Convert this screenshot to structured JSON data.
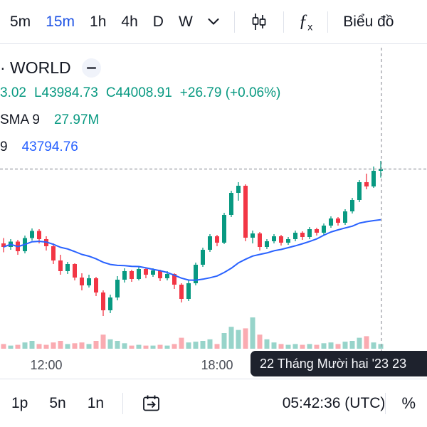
{
  "colors": {
    "up": "#089981",
    "down": "#F23645",
    "up_soft": "rgba(8,153,129,0.42)",
    "down_soft": "rgba(242,54,69,0.42)",
    "sma": "#2962FF",
    "price_line": "#787B86",
    "crosshair": "#9598A1",
    "accent": "#1E53E5",
    "text": "#131722",
    "teal": "#089981",
    "value_blue": "#2962FF",
    "tooltip_bg": "#1E222D"
  },
  "top_toolbar": {
    "timeframes": [
      {
        "label": "5m",
        "active": false
      },
      {
        "label": "15m",
        "active": true
      },
      {
        "label": "1h",
        "active": false
      },
      {
        "label": "4h",
        "active": false
      },
      {
        "label": "D",
        "active": false
      },
      {
        "label": "W",
        "active": false
      }
    ],
    "fx_f": "ƒ",
    "fx_sub": "x",
    "chart_button": "Biểu đồ"
  },
  "legend": {
    "symbol": "· WORLD",
    "ohlc": {
      "fragment": "3.02",
      "low": "L43984.73",
      "close": "C44008.91",
      "change": "+26.79 (+0.06%)"
    },
    "volume": {
      "label": "SMA 9",
      "value": "27.97M"
    },
    "sma": {
      "label": "9",
      "value": "43794.76"
    }
  },
  "x_axis": {
    "labels": [
      {
        "text": "12:00"
      },
      {
        "text": "18:00"
      }
    ]
  },
  "tooltip": {
    "text": "22 Tháng Mười hai '23  23"
  },
  "bottom_toolbar": {
    "ranges": [
      "1p",
      "5n",
      "1n"
    ],
    "clock": "05:42:36 (UTC)",
    "percent": "%"
  },
  "chart_data": {
    "type": "candlestick",
    "interval": "15m",
    "date": "22 Tháng Mười hai '23",
    "price_line": 44008.91,
    "last_close": 44008.91,
    "last_low": 43984.73,
    "change": 26.79,
    "change_pct": 0.06,
    "volume_current": "27.97M",
    "sma_value": 43794.76,
    "candles": [
      [
        43800,
        43815,
        43775,
        43790,
        3
      ],
      [
        43790,
        43812,
        43782,
        43805,
        2
      ],
      [
        43805,
        43810,
        43768,
        43778,
        2.5
      ],
      [
        43778,
        43822,
        43772,
        43815,
        4
      ],
      [
        43815,
        43842,
        43808,
        43835,
        5
      ],
      [
        43835,
        43840,
        43800,
        43812,
        3
      ],
      [
        43812,
        43820,
        43780,
        43792,
        2.5
      ],
      [
        43792,
        43800,
        43742,
        43752,
        4
      ],
      [
        43752,
        43768,
        43712,
        43722,
        5
      ],
      [
        43722,
        43748,
        43714,
        43742,
        3
      ],
      [
        43742,
        43744,
        43696,
        43704,
        3.5
      ],
      [
        43704,
        43716,
        43668,
        43682,
        4
      ],
      [
        43682,
        43712,
        43676,
        43702,
        3
      ],
      [
        43702,
        43706,
        43652,
        43662,
        5
      ],
      [
        43662,
        43668,
        43596,
        43612,
        9
      ],
      [
        43612,
        43656,
        43604,
        43648,
        6
      ],
      [
        43648,
        43708,
        43640,
        43698,
        5
      ],
      [
        43698,
        43730,
        43690,
        43722,
        3.5
      ],
      [
        43722,
        43726,
        43692,
        43700,
        2
      ],
      [
        43700,
        43736,
        43696,
        43728,
        2.5
      ],
      [
        43728,
        43732,
        43702,
        43712,
        2
      ],
      [
        43712,
        43730,
        43706,
        43724,
        2
      ],
      [
        43724,
        43726,
        43694,
        43702,
        2.5
      ],
      [
        43702,
        43722,
        43696,
        43714,
        2
      ],
      [
        43714,
        43716,
        43672,
        43684,
        3
      ],
      [
        43684,
        43688,
        43634,
        43644,
        7
      ],
      [
        43644,
        43696,
        43638,
        43688,
        4
      ],
      [
        43688,
        43746,
        43682,
        43740,
        4.5
      ],
      [
        43740,
        43788,
        43734,
        43782,
        5
      ],
      [
        43782,
        43826,
        43776,
        43820,
        6
      ],
      [
        43820,
        43824,
        43792,
        43802,
        3
      ],
      [
        43802,
        43886,
        43798,
        43880,
        10
      ],
      [
        43880,
        43948,
        43874,
        43942,
        14
      ],
      [
        43942,
        43972,
        43920,
        43962,
        12
      ],
      [
        43962,
        43966,
        43806,
        43816,
        13
      ],
      [
        43816,
        43836,
        43800,
        43828,
        20
      ],
      [
        43828,
        43832,
        43780,
        43790,
        9
      ],
      [
        43790,
        43812,
        43784,
        43806,
        6
      ],
      [
        43806,
        43826,
        43800,
        43820,
        4
      ],
      [
        43820,
        43824,
        43794,
        43802,
        3
      ],
      [
        43802,
        43818,
        43796,
        43812,
        2.5
      ],
      [
        43812,
        43836,
        43806,
        43830,
        3
      ],
      [
        43830,
        43834,
        43810,
        43818,
        2.5
      ],
      [
        43818,
        43846,
        43812,
        43840,
        3
      ],
      [
        43840,
        43844,
        43822,
        43830,
        2.5
      ],
      [
        43830,
        43856,
        43824,
        43850,
        3.5
      ],
      [
        43850,
        43876,
        43844,
        43870,
        4
      ],
      [
        43870,
        43874,
        43850,
        43858,
        3
      ],
      [
        43858,
        43896,
        43852,
        43890,
        4.5
      ],
      [
        43890,
        43928,
        43884,
        43922,
        5
      ],
      [
        43922,
        43978,
        43916,
        43972,
        7
      ],
      [
        43972,
        43996,
        43952,
        43960,
        8
      ],
      [
        43960,
        44016,
        43956,
        44004,
        4
      ],
      [
        44004,
        44032,
        43984.73,
        44008.91,
        3
      ]
    ]
  }
}
